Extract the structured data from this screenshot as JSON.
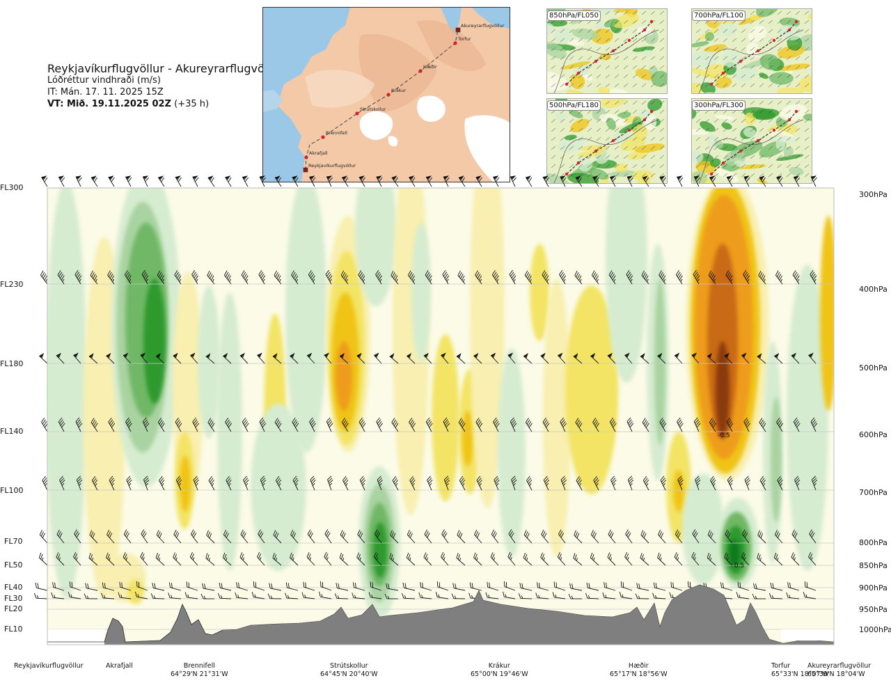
{
  "header": {
    "route": "Reykjavíkurflugvöllur - Akureyrarflugvöllur",
    "variable": "Lóðréttur vindhraði (m/s)",
    "issue_time": "IT: Mán. 17. 11. 2025 15Z",
    "valid_prefix": "VT: Mið. 19.11.2025 02Z",
    "valid_suffix": " (+35 h)"
  },
  "map": {
    "points": [
      {
        "name": "Akureyrarflugvöllur",
        "type": "airport"
      },
      {
        "name": "Torfur",
        "type": "point"
      },
      {
        "name": "Hæðir",
        "type": "point"
      },
      {
        "name": "Krákur",
        "type": "point"
      },
      {
        "name": "Strútskollur",
        "type": "point"
      },
      {
        "name": "Brennifell",
        "type": "point"
      },
      {
        "name": "Akrafjall",
        "type": "point"
      },
      {
        "name": "Reykjavíkurflugvöllur",
        "type": "airport"
      }
    ],
    "colors": {
      "sea": "#9cc8e8",
      "land": "#f3c9a8",
      "ice": "#ffffff",
      "route": "#444444",
      "marker": "#d4202a"
    }
  },
  "mini_maps": [
    {
      "label": "850hPa/FL050"
    },
    {
      "label": "700hPa/FL100"
    },
    {
      "label": "500hPa/FL180"
    },
    {
      "label": "300hPa/FL300"
    }
  ],
  "chart_data": {
    "type": "heatmap",
    "title": "Reykjavíkurflugvöllur - Akureyrarflugvöllur",
    "variable": "Lóðréttur vindhraði (m/s)",
    "y_left_levels": [
      "FL300",
      "FL230",
      "FL180",
      "FL140",
      "FL100",
      "FL70",
      "FL50",
      "FL40",
      "FL30",
      "FL20",
      "FL10"
    ],
    "y_right_levels": [
      "300hPa",
      "400hPa",
      "500hPa",
      "600hPa",
      "700hPa",
      "800hPa",
      "850hPa",
      "900hPa",
      "950hPa",
      "1000hPa"
    ],
    "x_points": [
      {
        "name": "Reykjavíkurflugvöllur",
        "coord": ""
      },
      {
        "name": "Akrafjall",
        "coord": ""
      },
      {
        "name": "Brennifell",
        "coord": "64°29'N 21°31'W"
      },
      {
        "name": "Strútskollur",
        "coord": "64°45'N 20°40'W"
      },
      {
        "name": "Krákur",
        "coord": "65°00'N 19°46'W"
      },
      {
        "name": "Hæðir",
        "coord": "65°17'N 18°56'W"
      },
      {
        "name": "Torfur",
        "coord": "65°33'N 18°07'W"
      },
      {
        "name": "Akureyrarflugvöllur",
        "coord": "65°39'N 18°04'W"
      }
    ],
    "annotations": [
      "-0.5",
      "0.5"
    ],
    "colors": {
      "strong_down": "#8a3a10",
      "down_3": "#c96a14",
      "down_2": "#ee9c1a",
      "down_1": "#f0c414",
      "down_0": "#f3e466",
      "weak_down": "#f8efb0",
      "neutral": "#fbfbe8",
      "weak_up": "#d6ecd0",
      "up_1": "#a9d3a0",
      "up_2": "#6fb866",
      "up_3": "#2f9a2e",
      "strong_up": "#0e7a1a",
      "terrain": "#7f7f7f",
      "grid": "#c9c9c9"
    },
    "grid": true,
    "legend": "none"
  }
}
